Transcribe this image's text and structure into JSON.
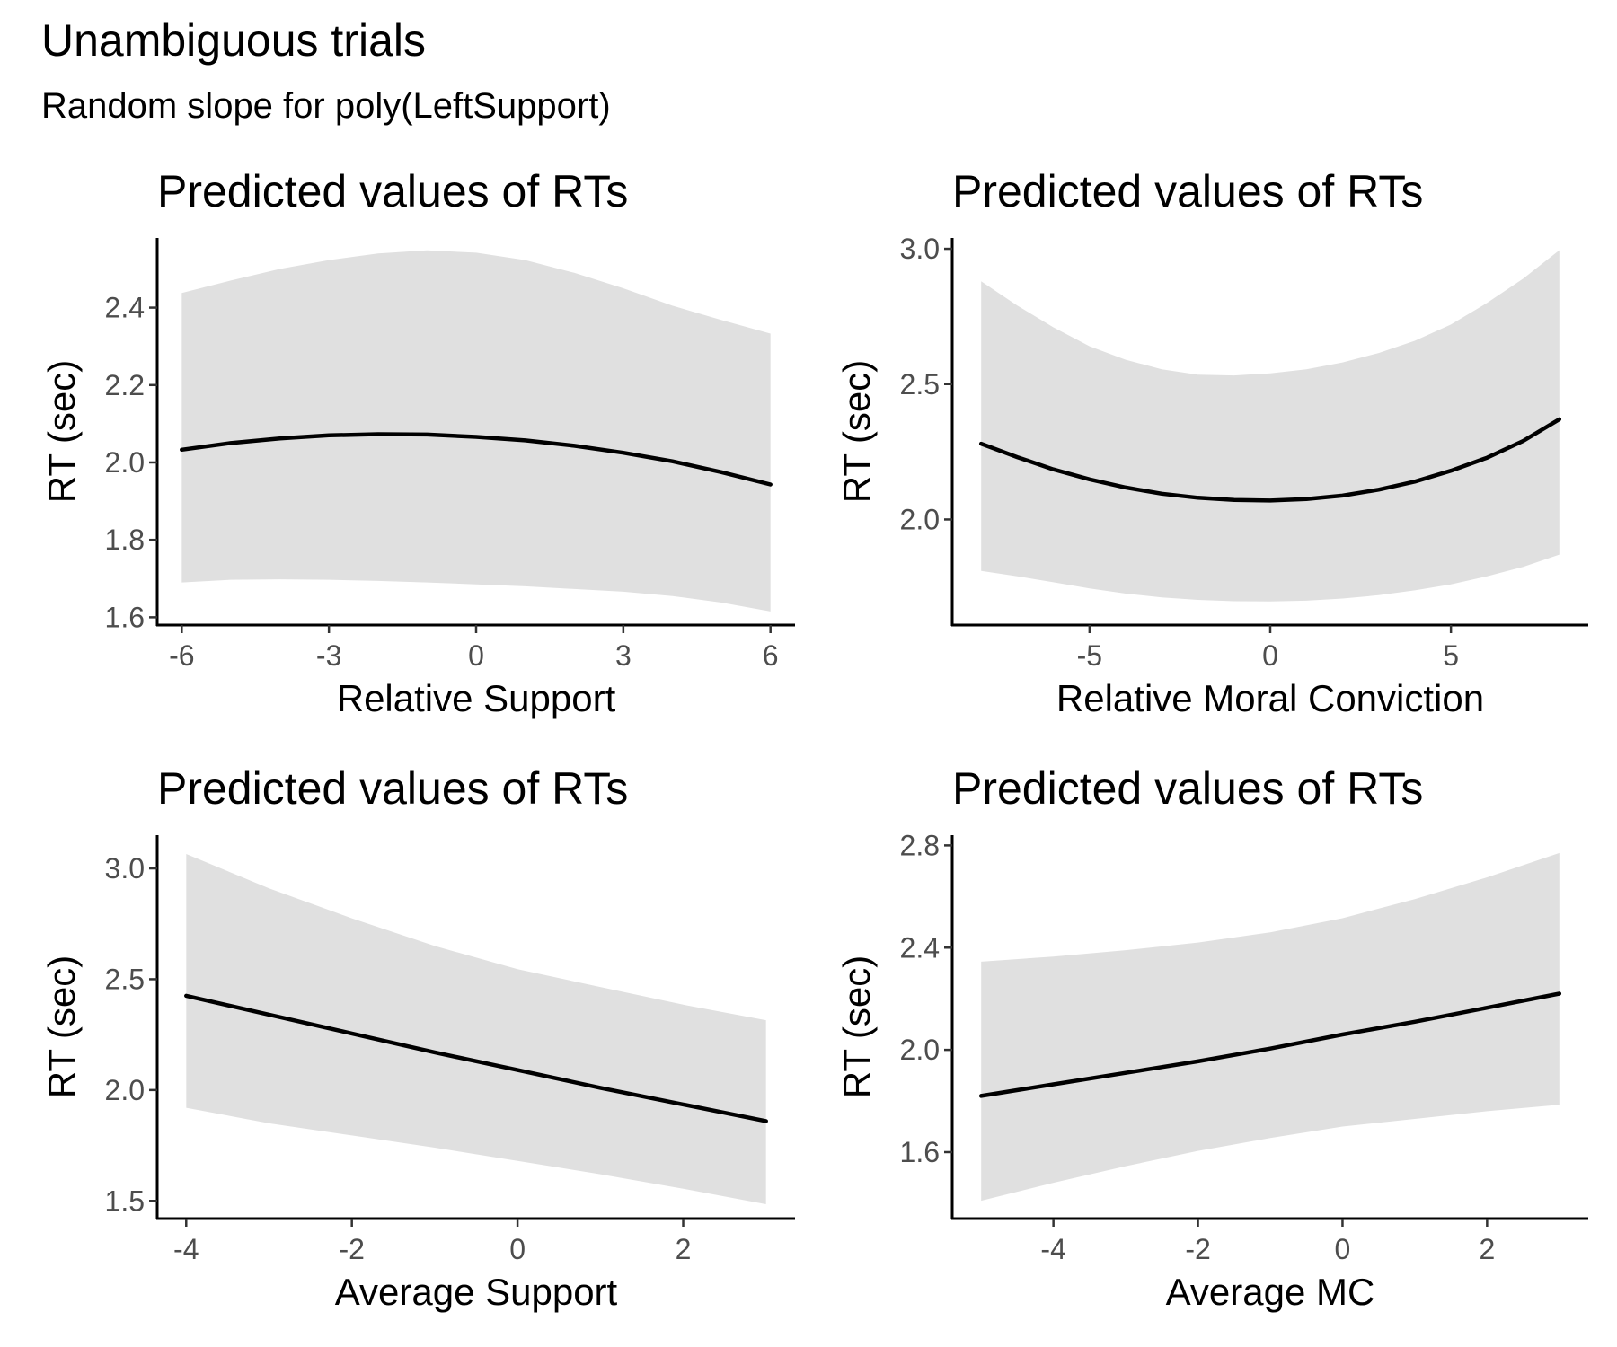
{
  "figure": {
    "title": "Unambiguous trials",
    "subtitle": "Random slope for poly(LeftSupport)"
  },
  "chart_data": [
    {
      "type": "line",
      "title": "Predicted values of RTs",
      "xlabel": "Relative Support",
      "ylabel": "RT (sec)",
      "xlim": [
        -6.5,
        6.5
      ],
      "ylim": [
        1.58,
        2.58
      ],
      "xticks": [
        -6,
        -3,
        0,
        3,
        6
      ],
      "xtick_labels": [
        "-6",
        "-3",
        "0",
        "3",
        "6"
      ],
      "yticks": [
        1.6,
        1.8,
        2.0,
        2.2,
        2.4
      ],
      "ytick_labels": [
        "1.6",
        "1.8",
        "2.0",
        "2.2",
        "2.4"
      ],
      "x": [
        -6,
        -5,
        -4,
        -3,
        -2,
        -1,
        0,
        1,
        2,
        3,
        4,
        5,
        6
      ],
      "y": [
        2.033,
        2.05,
        2.062,
        2.07,
        2.073,
        2.072,
        2.066,
        2.057,
        2.043,
        2.025,
        2.003,
        1.975,
        1.943
      ],
      "lower": [
        1.69,
        1.697,
        1.698,
        1.697,
        1.694,
        1.69,
        1.685,
        1.68,
        1.673,
        1.666,
        1.655,
        1.638,
        1.615
      ],
      "upper": [
        2.438,
        2.47,
        2.5,
        2.523,
        2.54,
        2.548,
        2.542,
        2.523,
        2.49,
        2.45,
        2.405,
        2.368,
        2.333
      ],
      "band_color": "#e0e0e0",
      "line_color": "#000000",
      "grid": false
    },
    {
      "type": "line",
      "title": "Predicted values of RTs",
      "xlabel": "Relative Moral Conviction",
      "ylabel": "RT (sec)",
      "xlim": [
        -8.8,
        8.8
      ],
      "ylim": [
        1.61,
        3.04
      ],
      "xticks": [
        -5,
        0,
        5
      ],
      "xtick_labels": [
        "-5",
        "0",
        "5"
      ],
      "yticks": [
        2.0,
        2.5,
        3.0
      ],
      "ytick_labels": [
        "2.0",
        "2.5",
        "3.0"
      ],
      "x": [
        -8,
        -7,
        -6,
        -5,
        -4,
        -3,
        -2,
        -1,
        0,
        1,
        2,
        3,
        4,
        5,
        6,
        7,
        8
      ],
      "y": [
        2.28,
        2.23,
        2.185,
        2.148,
        2.118,
        2.095,
        2.08,
        2.072,
        2.07,
        2.075,
        2.088,
        2.11,
        2.14,
        2.18,
        2.228,
        2.29,
        2.37
      ],
      "lower": [
        1.81,
        1.79,
        1.768,
        1.745,
        1.726,
        1.712,
        1.703,
        1.698,
        1.697,
        1.7,
        1.708,
        1.72,
        1.738,
        1.76,
        1.79,
        1.825,
        1.87
      ],
      "upper": [
        2.88,
        2.79,
        2.71,
        2.64,
        2.59,
        2.555,
        2.535,
        2.532,
        2.54,
        2.555,
        2.58,
        2.615,
        2.66,
        2.72,
        2.8,
        2.89,
        2.995
      ],
      "band_color": "#e0e0e0",
      "line_color": "#000000",
      "grid": false
    },
    {
      "type": "line",
      "title": "Predicted values of RTs",
      "xlabel": "Average Support",
      "ylabel": "RT (sec)",
      "xlim": [
        -4.35,
        3.35
      ],
      "ylim": [
        1.42,
        3.15
      ],
      "xticks": [
        -4,
        -2,
        0,
        2
      ],
      "xtick_labels": [
        "-4",
        "-2",
        "0",
        "2"
      ],
      "yticks": [
        1.5,
        2.0,
        2.5,
        3.0
      ],
      "ytick_labels": [
        "1.5",
        "2.0",
        "2.5",
        "3.0"
      ],
      "x": [
        -4,
        -3,
        -2,
        -1,
        0,
        1,
        2,
        3
      ],
      "y": [
        2.425,
        2.34,
        2.255,
        2.17,
        2.09,
        2.01,
        1.935,
        1.86
      ],
      "lower": [
        1.92,
        1.85,
        1.795,
        1.74,
        1.68,
        1.62,
        1.555,
        1.485
      ],
      "upper": [
        3.065,
        2.91,
        2.775,
        2.65,
        2.545,
        2.465,
        2.385,
        2.315
      ],
      "band_color": "#e0e0e0",
      "line_color": "#000000",
      "grid": false
    },
    {
      "type": "line",
      "title": "Predicted values of RTs",
      "xlabel": "Average MC",
      "ylabel": "RT (sec)",
      "xlim": [
        -5.4,
        3.4
      ],
      "ylim": [
        1.34,
        2.84
      ],
      "xticks": [
        -4,
        -2,
        0,
        2
      ],
      "xtick_labels": [
        "-4",
        "-2",
        "0",
        "2"
      ],
      "yticks": [
        1.6,
        2.0,
        2.4,
        2.8
      ],
      "ytick_labels": [
        "1.6",
        "2.0",
        "2.4",
        "2.8"
      ],
      "x": [
        -5,
        -4,
        -3,
        -2,
        -1,
        0,
        1,
        2,
        3
      ],
      "y": [
        1.82,
        1.865,
        1.91,
        1.955,
        2.005,
        2.06,
        2.11,
        2.165,
        2.22
      ],
      "lower": [
        1.41,
        1.48,
        1.545,
        1.605,
        1.655,
        1.7,
        1.73,
        1.76,
        1.785
      ],
      "upper": [
        2.345,
        2.365,
        2.39,
        2.42,
        2.46,
        2.515,
        2.59,
        2.675,
        2.77
      ],
      "band_color": "#e0e0e0",
      "line_color": "#000000",
      "grid": false
    }
  ]
}
